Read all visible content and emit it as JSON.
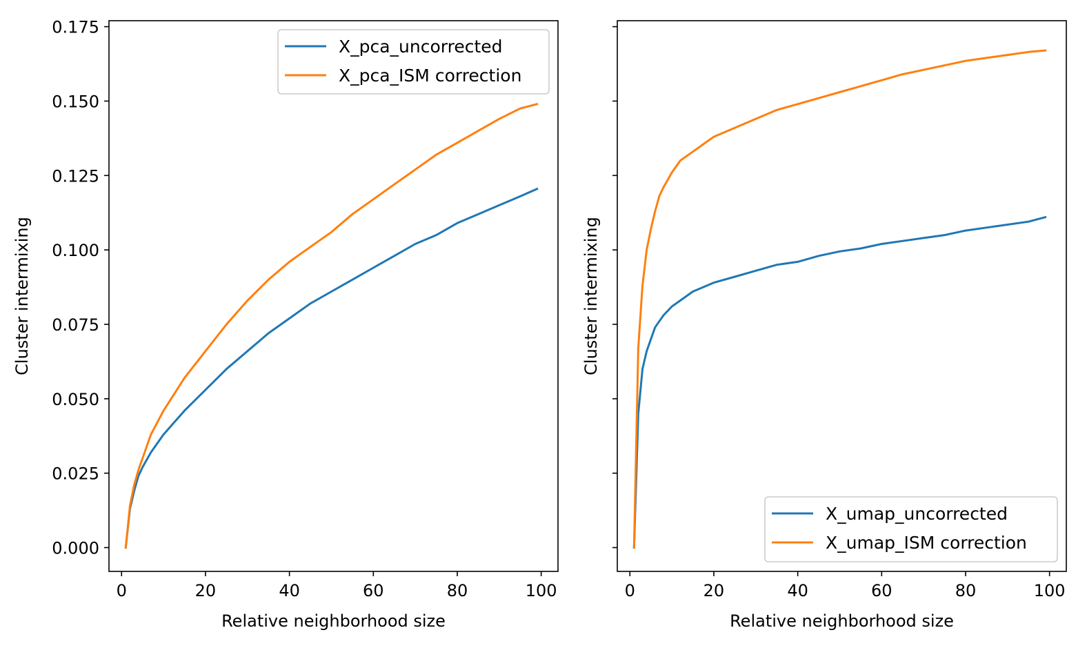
{
  "chart_data": [
    {
      "type": "line",
      "title": "",
      "xlabel": "Relative neighborhood size",
      "ylabel": "Cluster intermixing",
      "xlim": [
        -3,
        104
      ],
      "ylim": [
        -0.008,
        0.177
      ],
      "x_ticks": [
        0,
        20,
        40,
        60,
        80,
        100
      ],
      "x_tick_labels": [
        "0",
        "20",
        "40",
        "60",
        "80",
        "100"
      ],
      "y_ticks": [
        0.0,
        0.025,
        0.05,
        0.075,
        0.1,
        0.125,
        0.15,
        0.175
      ],
      "y_tick_labels": [
        "0.000",
        "0.025",
        "0.050",
        "0.075",
        "0.100",
        "0.125",
        "0.150",
        "0.175"
      ],
      "grid": false,
      "legend_position": "top-right",
      "x": [
        1,
        2,
        3,
        4,
        5,
        7,
        10,
        15,
        20,
        25,
        30,
        35,
        40,
        45,
        50,
        55,
        60,
        65,
        70,
        75,
        80,
        85,
        90,
        95,
        99
      ],
      "series": [
        {
          "name": "X_pca_uncorrected",
          "color": "#1f77b4",
          "values": [
            0.0,
            0.013,
            0.019,
            0.024,
            0.027,
            0.032,
            0.038,
            0.046,
            0.053,
            0.06,
            0.066,
            0.072,
            0.077,
            0.082,
            0.086,
            0.09,
            0.094,
            0.098,
            0.102,
            0.105,
            0.109,
            0.112,
            0.115,
            0.118,
            0.1205
          ]
        },
        {
          "name": "X_pca_ISM correction",
          "color": "#ff7f0e",
          "values": [
            0.0,
            0.014,
            0.021,
            0.026,
            0.03,
            0.038,
            0.046,
            0.057,
            0.066,
            0.075,
            0.083,
            0.09,
            0.096,
            0.101,
            0.106,
            0.112,
            0.117,
            0.122,
            0.127,
            0.132,
            0.136,
            0.14,
            0.144,
            0.1475,
            0.149
          ]
        }
      ]
    },
    {
      "type": "line",
      "title": "",
      "xlabel": "Relative neighborhood size",
      "ylabel": "Cluster intermixing",
      "xlim": [
        -3,
        104
      ],
      "ylim": [
        -0.008,
        0.177
      ],
      "x_ticks": [
        0,
        20,
        40,
        60,
        80,
        100
      ],
      "x_tick_labels": [
        "0",
        "20",
        "40",
        "60",
        "80",
        "100"
      ],
      "y_ticks": [
        0.0,
        0.025,
        0.05,
        0.075,
        0.1,
        0.125,
        0.15,
        0.175
      ],
      "y_tick_labels": [],
      "grid": false,
      "legend_position": "bottom-right",
      "x": [
        1,
        2,
        3,
        4,
        5,
        6,
        7,
        8,
        10,
        12,
        15,
        20,
        25,
        30,
        35,
        40,
        45,
        50,
        55,
        60,
        65,
        70,
        75,
        80,
        85,
        90,
        95,
        99
      ],
      "series": [
        {
          "name": "X_umap_uncorrected",
          "color": "#1f77b4",
          "values": [
            0.0,
            0.045,
            0.06,
            0.066,
            0.07,
            0.074,
            0.076,
            0.078,
            0.081,
            0.083,
            0.086,
            0.089,
            0.091,
            0.093,
            0.095,
            0.096,
            0.098,
            0.0995,
            0.1005,
            0.102,
            0.103,
            0.104,
            0.105,
            0.1065,
            0.1075,
            0.1085,
            0.1095,
            0.111
          ]
        },
        {
          "name": "X_umap_ISM correction",
          "color": "#ff7f0e",
          "values": [
            0.0,
            0.067,
            0.088,
            0.1,
            0.107,
            0.113,
            0.118,
            0.121,
            0.126,
            0.13,
            0.133,
            0.138,
            0.141,
            0.144,
            0.147,
            0.149,
            0.151,
            0.153,
            0.155,
            0.157,
            0.159,
            0.1605,
            0.162,
            0.1635,
            0.1645,
            0.1655,
            0.1665,
            0.167
          ]
        }
      ]
    }
  ]
}
